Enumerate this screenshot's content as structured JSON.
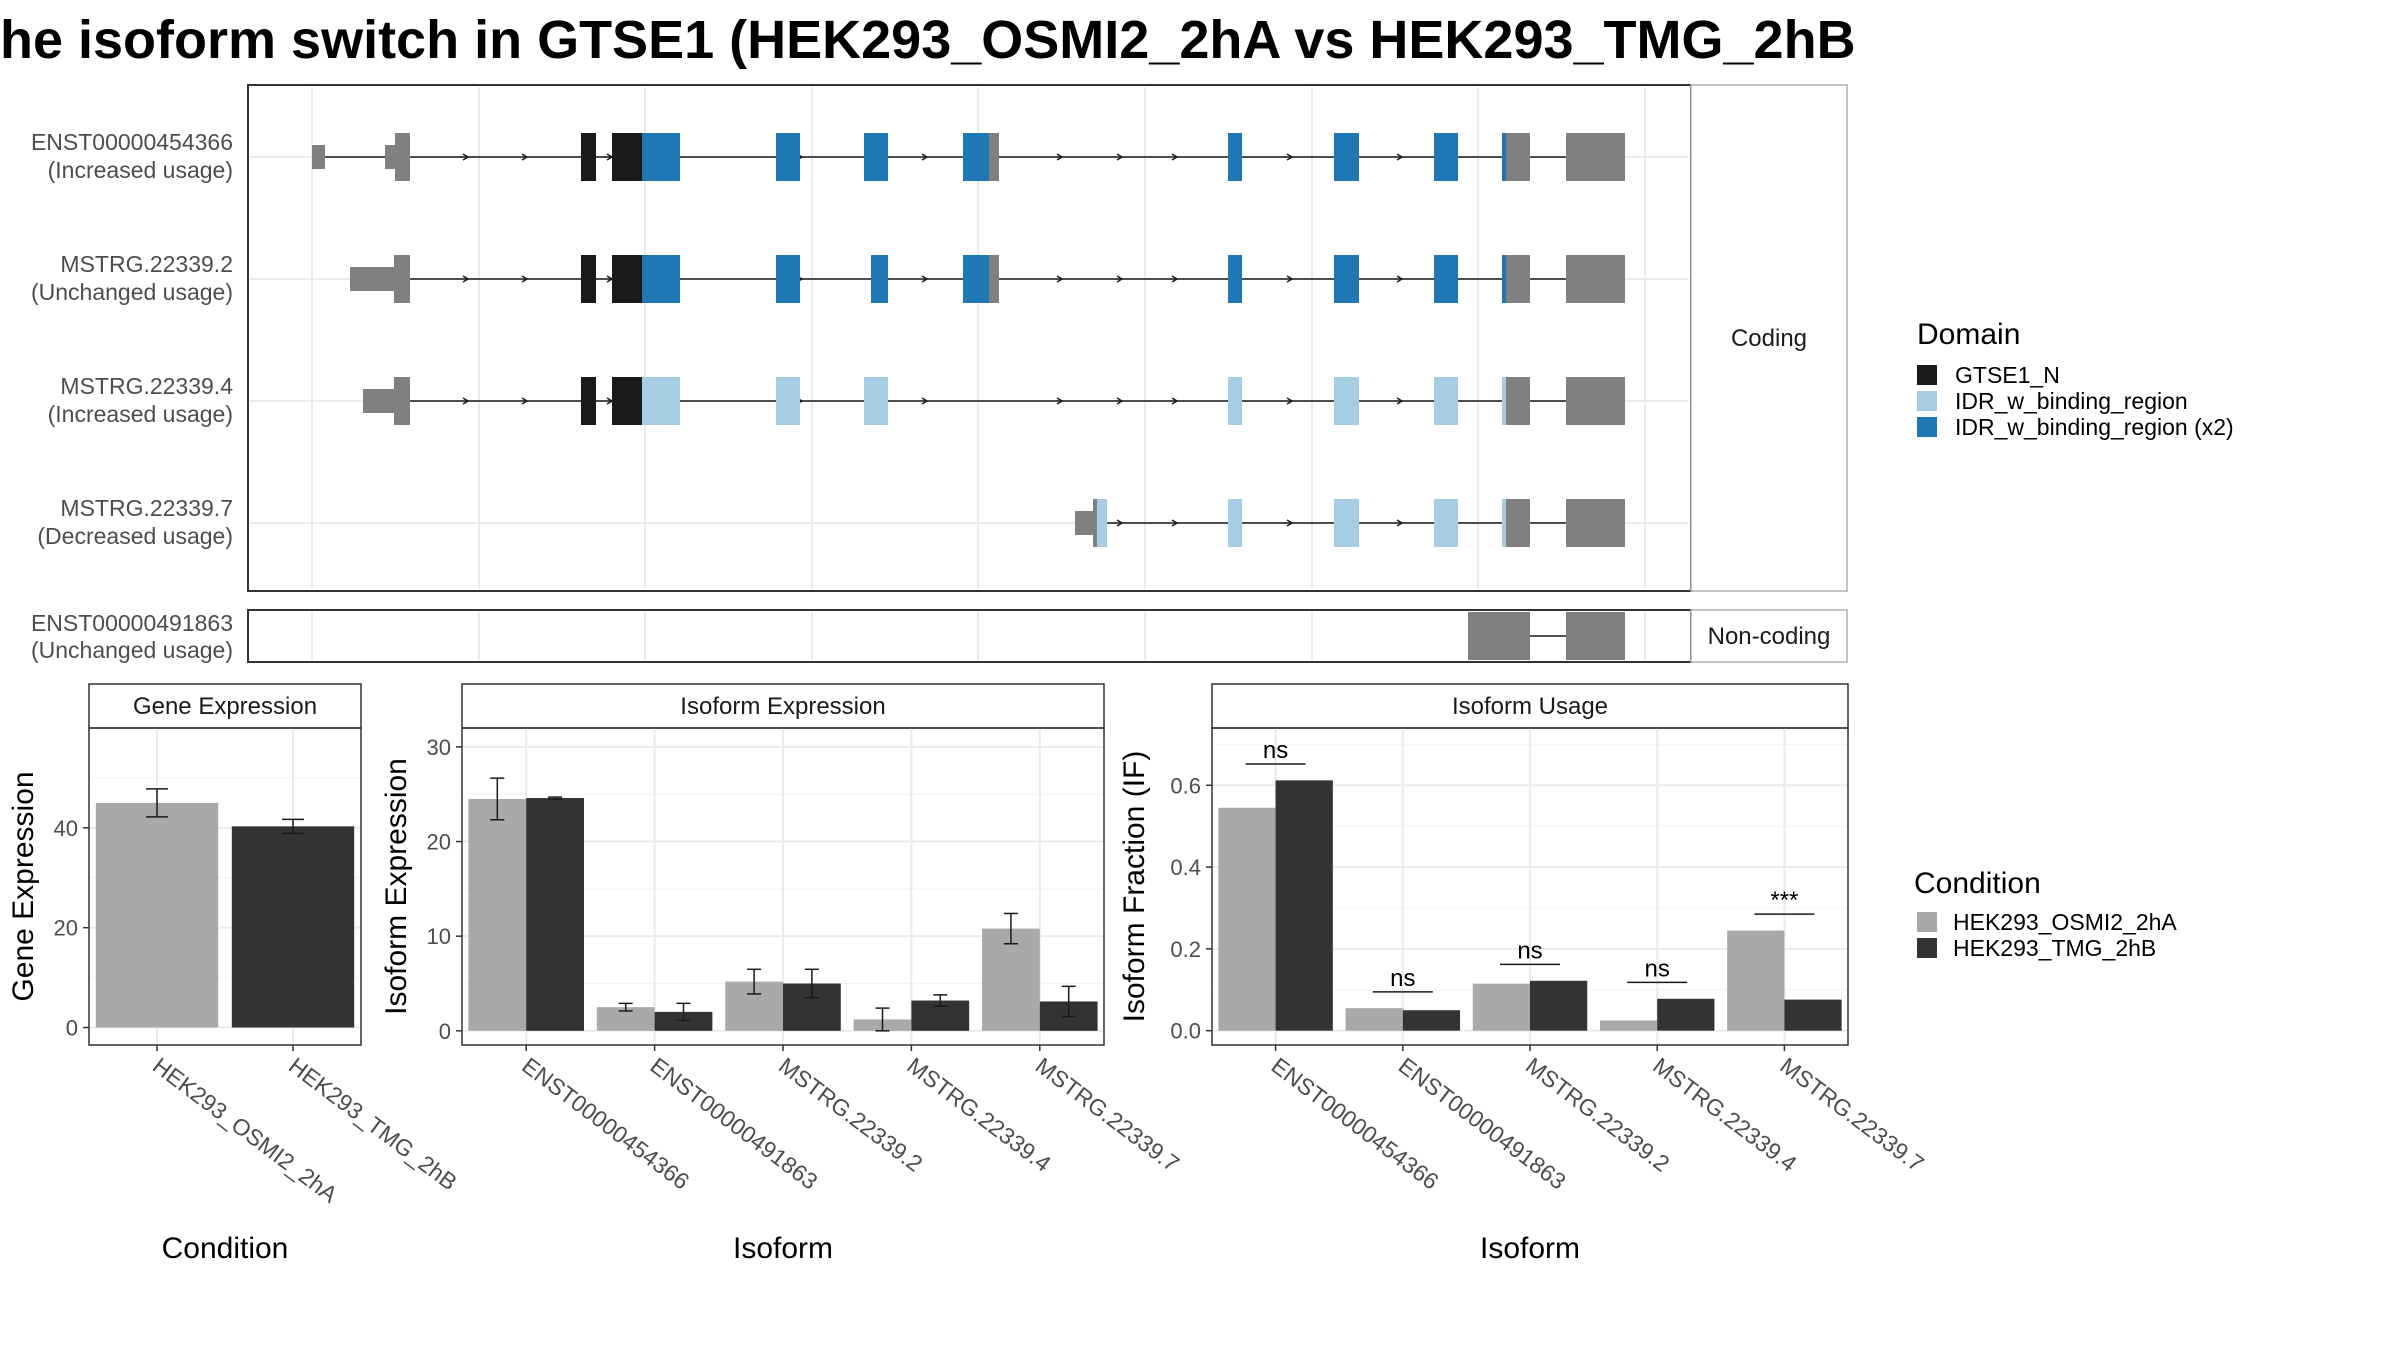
{
  "title": "he isoform switch in GTSE1 (HEK293_OSMI2_2hA vs HEK293_TMG_2hB",
  "colors": {
    "gtse1": "#1a1a1a",
    "idr": "#a6cee3",
    "idr2": "#1f78b4",
    "utr": "#808080",
    "osmi": "#a9a9a9",
    "tmg": "#333333",
    "grid": "#ebebeb",
    "strip": "#ffffff"
  },
  "structure": {
    "coding_label": "Coding",
    "noncoding_label": "Non-coding",
    "transcripts": [
      {
        "id": "ENST00000454366",
        "usage": "(Increased usage)"
      },
      {
        "id": "MSTRG.22339.2",
        "usage": "(Unchanged usage)"
      },
      {
        "id": "MSTRG.22339.4",
        "usage": "(Increased usage)"
      },
      {
        "id": "MSTRG.22339.7",
        "usage": "(Decreased usage)"
      },
      {
        "id": "ENST00000491863",
        "usage": "(Unchanged usage)"
      }
    ]
  },
  "legend_domain": {
    "title": "Domain",
    "items": [
      {
        "label": "GTSE1_N",
        "color": "#1a1a1a"
      },
      {
        "label": "IDR_w_binding_region",
        "color": "#a6cee3"
      },
      {
        "label": "IDR_w_binding_region (x2)",
        "color": "#1f78b4"
      }
    ]
  },
  "legend_condition": {
    "title": "Condition",
    "items": [
      {
        "label": "HEK293_OSMI2_2hA",
        "color": "#a9a9a9"
      },
      {
        "label": "HEK293_TMG_2hB",
        "color": "#333333"
      }
    ]
  },
  "chart_data": [
    {
      "type": "bar",
      "title": "Gene Expression",
      "xlabel": "Condition",
      "ylabel": "Gene Expression",
      "categories": [
        "HEK293_OSMI2_2hA",
        "HEK293_TMG_2hB"
      ],
      "values": [
        45,
        40.3
      ],
      "errors": [
        2.8,
        1.4
      ],
      "ylim": [
        -3.5,
        60
      ],
      "yticks": [
        0,
        20,
        40
      ]
    },
    {
      "type": "bar",
      "title": "Isoform Expression",
      "xlabel": "Isoform",
      "ylabel": "Isoform Expression",
      "categories": [
        "ENST00000454366",
        "ENST00000491863",
        "MSTRG.22339.2",
        "MSTRG.22339.4",
        "MSTRG.22339.7"
      ],
      "series": [
        {
          "name": "HEK293_OSMI2_2hA",
          "values": [
            24.5,
            2.5,
            5.2,
            1.2,
            10.8
          ],
          "errors": [
            2.2,
            0.4,
            1.3,
            1.2,
            1.6
          ]
        },
        {
          "name": "HEK293_TMG_2hB",
          "values": [
            24.6,
            2.0,
            5.0,
            3.2,
            3.1
          ],
          "errors": [
            0.1,
            0.9,
            1.5,
            0.6,
            1.6
          ]
        }
      ],
      "ylim": [
        -1.5,
        32
      ],
      "yticks": [
        0,
        10,
        20,
        30
      ]
    },
    {
      "type": "bar",
      "title": "Isoform Usage",
      "xlabel": "Isoform",
      "ylabel": "Isoform Fraction (IF)",
      "categories": [
        "ENST00000454366",
        "ENST00000491863",
        "MSTRG.22339.2",
        "MSTRG.22339.4",
        "MSTRG.22339.7"
      ],
      "series": [
        {
          "name": "HEK293_OSMI2_2hA",
          "values": [
            0.545,
            0.055,
            0.115,
            0.025,
            0.245
          ]
        },
        {
          "name": "HEK293_TMG_2hB",
          "values": [
            0.612,
            0.05,
            0.122,
            0.078,
            0.076
          ]
        }
      ],
      "significance": [
        "ns",
        "ns",
        "ns",
        "ns",
        "***"
      ],
      "ylim": [
        -0.035,
        0.74
      ],
      "yticks": [
        0.0,
        0.2,
        0.4,
        0.6
      ],
      "ytick_labels": [
        "0.0",
        "0.2",
        "0.4",
        "0.6"
      ]
    }
  ]
}
